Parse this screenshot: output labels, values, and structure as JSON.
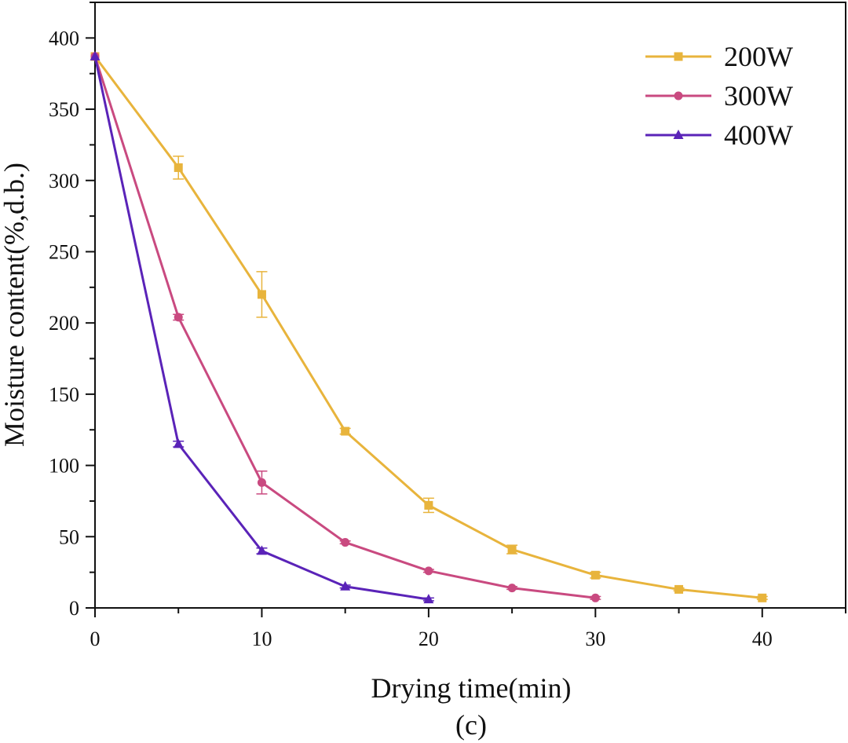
{
  "chart_data": {
    "type": "line",
    "title": "",
    "caption": "(c)",
    "xlabel": "Drying time(min)",
    "ylabel": "Moisture content(%,d.b.)",
    "xlim": [
      0,
      45
    ],
    "ylim": [
      0,
      425
    ],
    "xticks": [
      0,
      10,
      20,
      30,
      40
    ],
    "yticks": [
      0,
      50,
      100,
      150,
      200,
      250,
      300,
      350,
      400
    ],
    "x_minor_step": 5,
    "y_minor_step": 25,
    "legend_position": "top-right",
    "series": [
      {
        "name": "200W",
        "color": "#E8B43C",
        "marker": "square",
        "x": [
          0,
          5,
          10,
          15,
          20,
          25,
          30,
          35,
          40
        ],
        "values": [
          387,
          309,
          220,
          124,
          72,
          41,
          23,
          13,
          7
        ],
        "errors": [
          0,
          8,
          16,
          2,
          5,
          3,
          2,
          1,
          1
        ]
      },
      {
        "name": "300W",
        "color": "#C94A80",
        "marker": "circle",
        "x": [
          0,
          5,
          10,
          15,
          20,
          25,
          30
        ],
        "values": [
          387,
          204,
          88,
          46,
          26,
          14,
          7
        ],
        "errors": [
          0,
          2,
          8,
          1,
          1,
          1,
          1
        ]
      },
      {
        "name": "400W",
        "color": "#5A23B8",
        "marker": "triangle",
        "x": [
          0,
          5,
          10,
          15,
          20
        ],
        "values": [
          387,
          115,
          40,
          15,
          6
        ],
        "errors": [
          0,
          2,
          2,
          1,
          1
        ]
      }
    ]
  }
}
